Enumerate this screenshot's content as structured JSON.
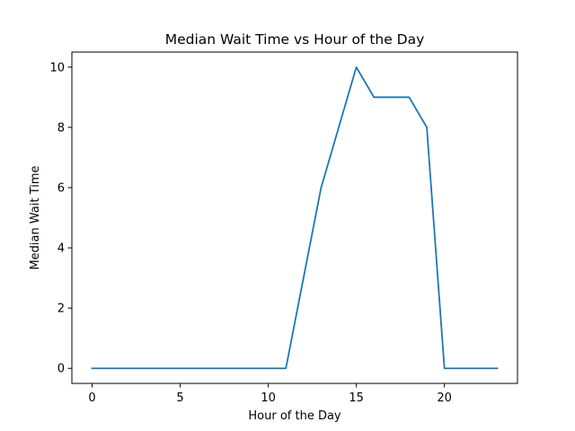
{
  "chart_data": {
    "type": "line",
    "title": "Median Wait Time vs Hour of the Day",
    "xlabel": "Hour of the Day",
    "ylabel": "Median Wait Time",
    "xlim": [
      -1.15,
      24.15
    ],
    "ylim": [
      -0.5,
      10.5
    ],
    "xticks": [
      0,
      5,
      10,
      15,
      20
    ],
    "yticks": [
      0,
      2,
      4,
      6,
      8,
      10
    ],
    "grid": false,
    "series": [
      {
        "color": "#1f77b4",
        "x": [
          0,
          1,
          2,
          3,
          4,
          5,
          6,
          7,
          8,
          9,
          10,
          11,
          12,
          13,
          14,
          15,
          16,
          17,
          18,
          19,
          20,
          21,
          22,
          23
        ],
        "y": [
          0,
          0,
          0,
          0,
          0,
          0,
          0,
          0,
          0,
          0,
          0,
          0,
          3,
          6,
          8,
          10,
          9,
          9,
          9,
          8,
          0,
          0,
          0,
          0
        ]
      }
    ]
  }
}
